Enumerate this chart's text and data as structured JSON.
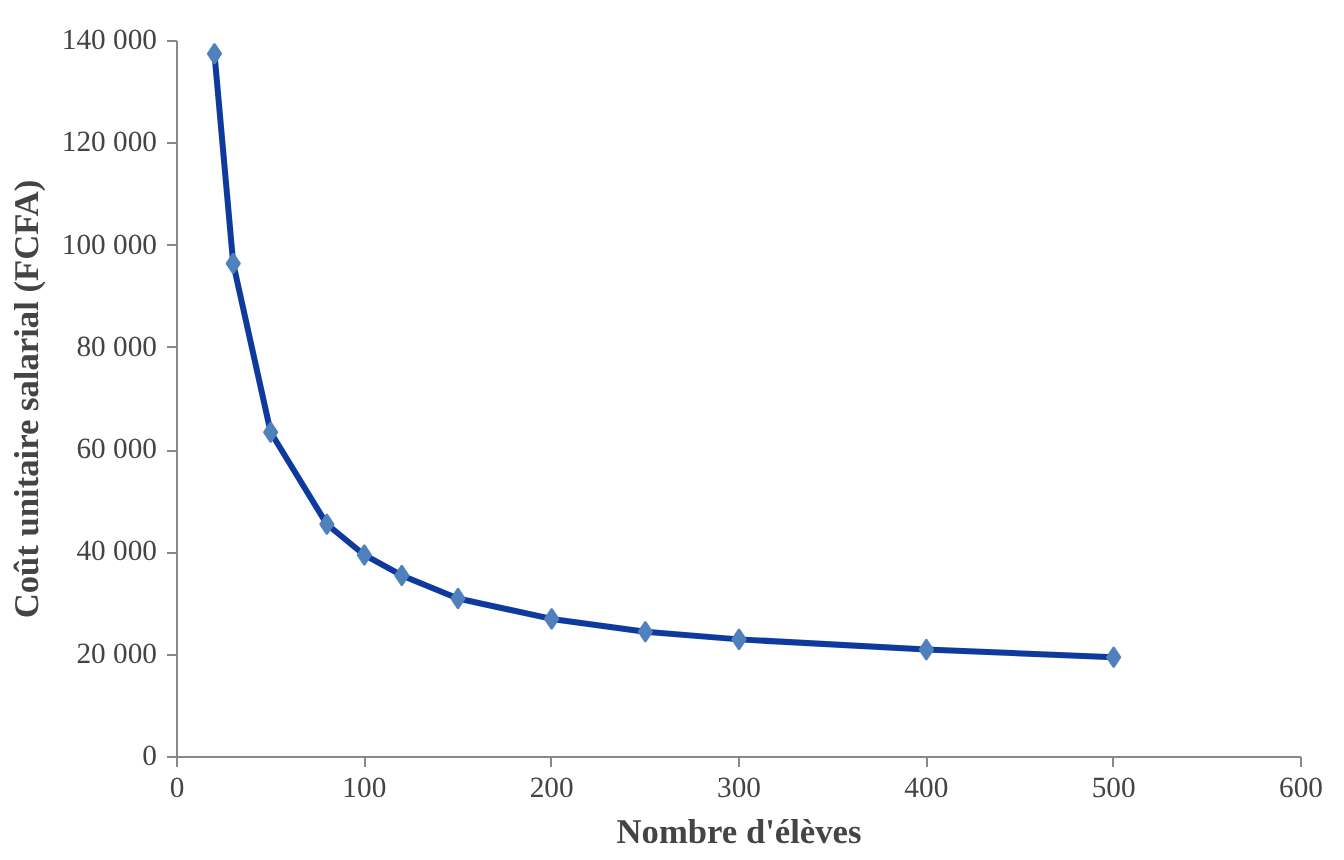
{
  "chart_data": {
    "type": "line",
    "xlabel": "Nombre d'élèves",
    "ylabel": "Coût unitaire salarial (FCFA)",
    "x": [
      20,
      30,
      50,
      80,
      100,
      120,
      150,
      200,
      250,
      300,
      400,
      500
    ],
    "series": [
      {
        "color": "#0e3a9e",
        "values": [
          137500,
          96500,
          63500,
          45500,
          39500,
          35500,
          31000,
          27000,
          24500,
          23000,
          21000,
          19500
        ]
      }
    ],
    "marker": "diamond",
    "xlim": [
      0,
      600
    ],
    "xticks": [
      0,
      100,
      200,
      300,
      400,
      500,
      600
    ],
    "ylim": [
      0,
      140000
    ],
    "yticks": [
      {
        "value": 0,
        "label": "0"
      },
      {
        "value": 20000,
        "label": "20 000"
      },
      {
        "value": 40000,
        "label": "40 000"
      },
      {
        "value": 60000,
        "label": "60 000"
      },
      {
        "value": 80000,
        "label": "80 000"
      },
      {
        "value": 100000,
        "label": "100 000"
      },
      {
        "value": 120000,
        "label": "120 000"
      },
      {
        "value": 140000,
        "label": "140 000"
      }
    ]
  }
}
